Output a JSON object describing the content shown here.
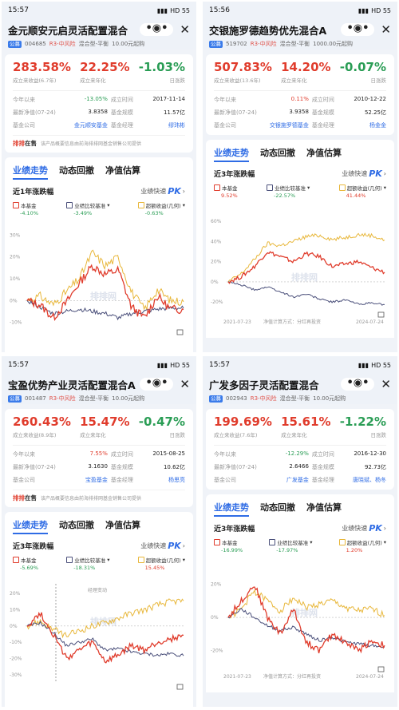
{
  "panels": [
    {
      "time": "15:57",
      "status": "HD 55",
      "title": "金元顺安元启灵活配置混合",
      "tag": "公募",
      "code": "004685",
      "risk": "R3-中风险",
      "type": "混合型-平衡",
      "min_buy": "10.00元起购",
      "m1": {
        "value": "283.58%",
        "label": "成立来收益(6.7年)"
      },
      "m2": {
        "value": "22.25%",
        "label": "成立来年化"
      },
      "m3": {
        "value": "-1.03%",
        "label": "日涨跌"
      },
      "k1": "今年以来",
      "v1": "-13.05%",
      "k2": "成立时间",
      "v2": "2017-11-14",
      "k3": "最新净值(07-24)",
      "v3": "3.8358",
      "k4": "基金规模",
      "v4": "11.57亿",
      "k5": "基金公司",
      "v5": "金元顺安基金",
      "k6": "基金经理",
      "v6": "缪玮彬",
      "ad_logo": "排排",
      "ad_logo2": "在售",
      "ad_text": "该产品概要信息由前海排排网基金销售公司提供",
      "tab1": "业绩走势",
      "tab2": "动态回撤",
      "tab3": "净值估算",
      "section": "近1年涨跌幅",
      "pk_label": "业绩快速",
      "pk": "PK",
      "l1": "本基金",
      "l1v": "-4.10%",
      "l2": "业绩比较基准",
      "l2v": "-3.49%",
      "l3": "超额收益(几何)",
      "l3v": "-0.63%",
      "y_ticks": [
        "30%",
        "20%",
        "10%",
        "0%",
        "-10%"
      ],
      "watermark": "排排网",
      "x_start": "",
      "x_end": "",
      "note": ""
    },
    {
      "time": "15:56",
      "status": "HD 55",
      "title": "交银施罗德趋势优先混合A",
      "tag": "公募",
      "code": "519702",
      "risk": "R3-中风险",
      "type": "混合型-平衡",
      "min_buy": "1000.00元起购",
      "m1": {
        "value": "507.83%",
        "label": "成立来收益(13.6年)"
      },
      "m2": {
        "value": "14.20%",
        "label": "成立来年化"
      },
      "m3": {
        "value": "-0.07%",
        "label": "日涨跌"
      },
      "k1": "今年以来",
      "v1": "0.11%",
      "k2": "成立时间",
      "v2": "2010-12-22",
      "k3": "最新净值(07-24)",
      "v3": "3.9358",
      "k4": "基金规模",
      "v4": "52.25亿",
      "k5": "基金公司",
      "v5": "交银施罗德基金",
      "k6": "基金经理",
      "v6": "杨金金",
      "ad_logo": "",
      "ad_logo2": "",
      "ad_text": "",
      "tab1": "业绩走势",
      "tab2": "动态回撤",
      "tab3": "净值估算",
      "section": "近3年涨跌幅",
      "pk_label": "业绩快速",
      "pk": "PK",
      "l1": "本基金",
      "l1v": "9.52%",
      "l2": "业绩比较基准",
      "l2v": "-22.57%",
      "l3": "超额收益(几何)",
      "l3v": "41.44%",
      "y_ticks": [
        "60%",
        "40%",
        "20%",
        "0%",
        "-20%"
      ],
      "watermark": "排排网",
      "x_start": "2021-07-23",
      "x_end": "2024-07-24",
      "note": "净值计算方式：分红再投资"
    },
    {
      "time": "15:57",
      "status": "HD 55",
      "title": "宝盈优势产业灵活配置混合A",
      "tag": "公募",
      "code": "001487",
      "risk": "R3-中风险",
      "type": "混合型-平衡",
      "min_buy": "10.00元起购",
      "m1": {
        "value": "260.43%",
        "label": "成立来收益(8.9年)"
      },
      "m2": {
        "value": "15.47%",
        "label": "成立来年化"
      },
      "m3": {
        "value": "-0.47%",
        "label": "日涨跌"
      },
      "k1": "今年以来",
      "v1": "7.55%",
      "k2": "成立时间",
      "v2": "2015-08-25",
      "k3": "最新净值(07-24)",
      "v3": "3.1630",
      "k4": "基金规模",
      "v4": "10.62亿",
      "k5": "基金公司",
      "v5": "宝盈基金",
      "k6": "基金经理",
      "v6": "杨思亮",
      "ad_logo": "排排",
      "ad_logo2": "在售",
      "ad_text": "该产品概要信息由前海排排网基金销售公司提供",
      "tab1": "业绩走势",
      "tab2": "动态回撤",
      "tab3": "净值估算",
      "section": "近3年涨跌幅",
      "pk_label": "业绩快速",
      "pk": "PK",
      "l1": "本基金",
      "l1v": "-5.69%",
      "l2": "业绩比较基准",
      "l2v": "-18.31%",
      "l3": "超额收益(几何)",
      "l3v": "15.45%",
      "y_ticks": [
        "20%",
        "10%",
        "0%",
        "-10%",
        "-20%",
        "-30%"
      ],
      "watermark": "排排网",
      "x_start": "",
      "x_end": "",
      "note": "",
      "annotation": "经理变动"
    },
    {
      "time": "15:57",
      "status": "HD 55",
      "title": "广发多因子灵活配置混合",
      "tag": "公募",
      "code": "002943",
      "risk": "R3-中风险",
      "type": "混合型-平衡",
      "min_buy": "10.00元起购",
      "m1": {
        "value": "199.69%",
        "label": "成立来收益(7.6年)"
      },
      "m2": {
        "value": "15.61%",
        "label": "成立来年化"
      },
      "m3": {
        "value": "-1.22%",
        "label": "日涨跌"
      },
      "k1": "今年以来",
      "v1": "-12.29%",
      "k2": "成立时间",
      "v2": "2016-12-30",
      "k3": "最新净值(07-24)",
      "v3": "2.6466",
      "k4": "基金规模",
      "v4": "92.73亿",
      "k5": "基金公司",
      "v5": "广发基金",
      "k6": "基金经理",
      "v6": "唐晓斌、杨冬",
      "ad_logo": "",
      "ad_logo2": "",
      "ad_text": "",
      "tab1": "业绩走势",
      "tab2": "动态回撤",
      "tab3": "净值估算",
      "section": "近3年涨跌幅",
      "pk_label": "业绩快速",
      "pk": "PK",
      "l1": "本基金",
      "l1v": "-16.99%",
      "l2": "业绩比较基准",
      "l2v": "-17.97%",
      "l3": "超额收益(几何)",
      "l3v": "1.20%",
      "y_ticks": [
        "20%",
        "0%",
        "-20%"
      ],
      "watermark": "排排网",
      "x_start": "2021-07-23",
      "x_end": "2024-07-24",
      "note": "净值计算方式：分红再投资"
    }
  ],
  "colors": {
    "fund": "#e03c2c",
    "benchmark": "#4a4f7a",
    "excess": "#e8b73a",
    "accent": "#2f6ce5"
  }
}
